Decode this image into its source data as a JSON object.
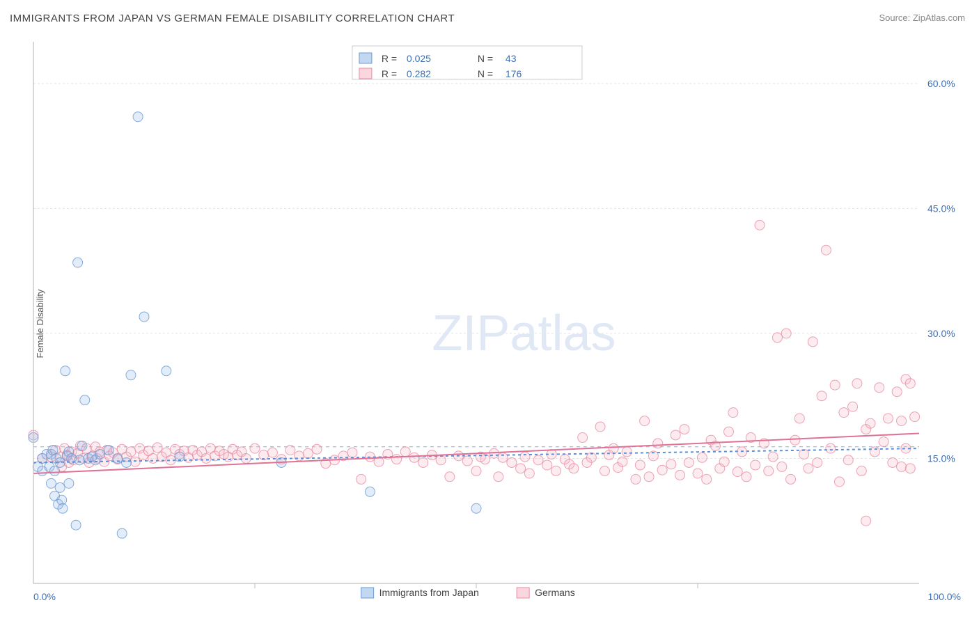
{
  "title": "IMMIGRANTS FROM JAPAN VS GERMAN FEMALE DISABILITY CORRELATION CHART",
  "source": "Source: ZipAtlas.com",
  "ylabel": "Female Disability",
  "watermark": {
    "text1": "ZIP",
    "text2": "atlas",
    "color": "#dfe8f4",
    "fontsize": 72
  },
  "chart": {
    "type": "scatter",
    "background": "#ffffff",
    "plot_border_color": "#bfbfbf",
    "grid_color": "#e4e4e4",
    "xlim": [
      0,
      100
    ],
    "ylim": [
      0,
      65
    ],
    "x_ticks": [
      {
        "v": 0,
        "label": "0.0%"
      },
      {
        "v": 100,
        "label": "100.0%"
      }
    ],
    "x_minor_ticks": [
      25,
      50,
      75
    ],
    "y_ticks": [
      {
        "v": 15,
        "label": "15.0%"
      },
      {
        "v": 30,
        "label": "30.0%"
      },
      {
        "v": 45,
        "label": "45.0%"
      },
      {
        "v": 60,
        "label": "60.0%"
      }
    ],
    "tick_color": "#3b6fb6",
    "tick_fontsize": 14,
    "marker_radius": 7,
    "marker_opacity": 0.28,
    "marker_stroke_opacity": 0.8,
    "series": [
      {
        "name": "Immigrants from Japan",
        "fill": "#9cbce8",
        "stroke": "#6a9ad4",
        "R": "0.025",
        "N": "43",
        "trend": {
          "y0": 14.5,
          "y1": 16.2,
          "color": "#5a8fd6",
          "width": 2,
          "dash": "4 4"
        },
        "pts": [
          [
            0,
            17.5
          ],
          [
            0.5,
            14
          ],
          [
            1,
            15
          ],
          [
            1,
            13.5
          ],
          [
            1.5,
            15.5
          ],
          [
            1.8,
            14
          ],
          [
            2,
            12
          ],
          [
            2,
            15.5
          ],
          [
            2.2,
            16
          ],
          [
            2.4,
            10.5
          ],
          [
            2.4,
            13.5
          ],
          [
            2.6,
            15
          ],
          [
            2.8,
            9.5
          ],
          [
            3,
            14.5
          ],
          [
            3,
            11.5
          ],
          [
            3.2,
            10
          ],
          [
            3.3,
            9
          ],
          [
            3.6,
            25.5
          ],
          [
            3.8,
            15.3
          ],
          [
            4,
            12
          ],
          [
            4,
            15.8
          ],
          [
            4.3,
            15
          ],
          [
            4.8,
            7
          ],
          [
            5,
            38.5
          ],
          [
            5.2,
            14.8
          ],
          [
            5.5,
            16.5
          ],
          [
            5.8,
            22
          ],
          [
            6.2,
            15
          ],
          [
            6.6,
            15.2
          ],
          [
            7,
            14.8
          ],
          [
            7.5,
            15.5
          ],
          [
            8.5,
            16
          ],
          [
            9.5,
            15
          ],
          [
            10,
            6
          ],
          [
            10.5,
            14.5
          ],
          [
            11,
            25
          ],
          [
            11.8,
            56
          ],
          [
            12.5,
            32
          ],
          [
            15,
            25.5
          ],
          [
            16.5,
            15.2
          ],
          [
            28,
            14.5
          ],
          [
            38,
            11
          ],
          [
            50,
            9
          ]
        ]
      },
      {
        "name": "Germans",
        "fill": "#f6bcca",
        "stroke": "#e98ba3",
        "R": "0.282",
        "N": "176",
        "trend": {
          "y0": 13.2,
          "y1": 18.0,
          "color": "#e07296",
          "width": 2,
          "dash": ""
        },
        "pts": [
          [
            0,
            17.8
          ],
          [
            1,
            15
          ],
          [
            2,
            15.2
          ],
          [
            2.5,
            16
          ],
          [
            3,
            15.2
          ],
          [
            3.2,
            14
          ],
          [
            3.5,
            16.2
          ],
          [
            3.8,
            15.4
          ],
          [
            4,
            14.5
          ],
          [
            4.3,
            15.8
          ],
          [
            4.5,
            14.8
          ],
          [
            5,
            15.6
          ],
          [
            5.3,
            16.5
          ],
          [
            5.6,
            15
          ],
          [
            6,
            16.2
          ],
          [
            6.3,
            14.5
          ],
          [
            6.7,
            15.3
          ],
          [
            7,
            16.4
          ],
          [
            7.2,
            15
          ],
          [
            7.5,
            15.8
          ],
          [
            8,
            14.6
          ],
          [
            8.3,
            16
          ],
          [
            8.6,
            15.3
          ],
          [
            9,
            15.7
          ],
          [
            9.5,
            14.9
          ],
          [
            10,
            16.1
          ],
          [
            10.5,
            15.2
          ],
          [
            11,
            15.8
          ],
          [
            11.5,
            14.6
          ],
          [
            12,
            16.2
          ],
          [
            12.4,
            15.4
          ],
          [
            13,
            15.9
          ],
          [
            13.5,
            15
          ],
          [
            14,
            16.3
          ],
          [
            14.5,
            15.2
          ],
          [
            15,
            15.7
          ],
          [
            15.5,
            14.8
          ],
          [
            16,
            16.1
          ],
          [
            16.5,
            15.5
          ],
          [
            17,
            15.9
          ],
          [
            17.5,
            15.1
          ],
          [
            18,
            16
          ],
          [
            18.5,
            15.4
          ],
          [
            19,
            15.8
          ],
          [
            19.5,
            15
          ],
          [
            20,
            16.2
          ],
          [
            20.5,
            15.3
          ],
          [
            21,
            15.9
          ],
          [
            21.5,
            15.5
          ],
          [
            22,
            15.2
          ],
          [
            22.5,
            16.1
          ],
          [
            23,
            15.4
          ],
          [
            23.5,
            15.8
          ],
          [
            24,
            15
          ],
          [
            25,
            16.2
          ],
          [
            26,
            15.4
          ],
          [
            27,
            15.7
          ],
          [
            28,
            14.9
          ],
          [
            29,
            16
          ],
          [
            30,
            15.3
          ],
          [
            31,
            15.6
          ],
          [
            32,
            16.1
          ],
          [
            33,
            14.4
          ],
          [
            34,
            14.8
          ],
          [
            35,
            15.3
          ],
          [
            36,
            15.7
          ],
          [
            37,
            12.5
          ],
          [
            38,
            15.2
          ],
          [
            39,
            14.6
          ],
          [
            40,
            15.5
          ],
          [
            41,
            14.9
          ],
          [
            42,
            15.8
          ],
          [
            43,
            15.1
          ],
          [
            44,
            14.5
          ],
          [
            45,
            15.4
          ],
          [
            46,
            14.8
          ],
          [
            47,
            12.8
          ],
          [
            48,
            15.3
          ],
          [
            49,
            14.7
          ],
          [
            50,
            13.5
          ],
          [
            50.5,
            15.2
          ],
          [
            51,
            14.9
          ],
          [
            52,
            15.6
          ],
          [
            52.5,
            12.8
          ],
          [
            53,
            15.1
          ],
          [
            54,
            14.5
          ],
          [
            55,
            13.8
          ],
          [
            55.5,
            15.2
          ],
          [
            56,
            13.2
          ],
          [
            57,
            14.8
          ],
          [
            58,
            14.2
          ],
          [
            58.5,
            15.5
          ],
          [
            59,
            13.5
          ],
          [
            60,
            14.9
          ],
          [
            60.5,
            14.3
          ],
          [
            61,
            13.8
          ],
          [
            62,
            17.5
          ],
          [
            62.5,
            14.5
          ],
          [
            63,
            15.1
          ],
          [
            64,
            18.8
          ],
          [
            64.5,
            13.5
          ],
          [
            65,
            15.4
          ],
          [
            65.5,
            16.2
          ],
          [
            66,
            13.9
          ],
          [
            66.5,
            14.6
          ],
          [
            67,
            15.8
          ],
          [
            68,
            12.5
          ],
          [
            68.5,
            14.2
          ],
          [
            69,
            19.5
          ],
          [
            69.5,
            12.8
          ],
          [
            70,
            15.3
          ],
          [
            70.5,
            16.8
          ],
          [
            71,
            13.6
          ],
          [
            72,
            14.3
          ],
          [
            72.5,
            17.8
          ],
          [
            73,
            13
          ],
          [
            73.5,
            18.5
          ],
          [
            74,
            14.5
          ],
          [
            75,
            13.2
          ],
          [
            75.5,
            15.1
          ],
          [
            76,
            12.5
          ],
          [
            76.5,
            17.2
          ],
          [
            77,
            16.5
          ],
          [
            77.5,
            13.8
          ],
          [
            78,
            14.6
          ],
          [
            78.5,
            18.2
          ],
          [
            79,
            20.5
          ],
          [
            79.5,
            13.4
          ],
          [
            80,
            15.8
          ],
          [
            80.5,
            12.8
          ],
          [
            81,
            17.5
          ],
          [
            81.5,
            14.2
          ],
          [
            82,
            43
          ],
          [
            82.5,
            16.8
          ],
          [
            83,
            13.5
          ],
          [
            83.5,
            15.2
          ],
          [
            84,
            29.5
          ],
          [
            84.5,
            14
          ],
          [
            85,
            30
          ],
          [
            85.5,
            12.5
          ],
          [
            86,
            17.2
          ],
          [
            86.5,
            19.8
          ],
          [
            87,
            15.5
          ],
          [
            87.5,
            13.8
          ],
          [
            88,
            29
          ],
          [
            88.5,
            14.5
          ],
          [
            89,
            22.5
          ],
          [
            89.5,
            40
          ],
          [
            90,
            16.2
          ],
          [
            90.5,
            23.8
          ],
          [
            91,
            12.2
          ],
          [
            91.5,
            20.5
          ],
          [
            92,
            14.8
          ],
          [
            92.5,
            21.2
          ],
          [
            93,
            24
          ],
          [
            93.5,
            13.5
          ],
          [
            94,
            18.5
          ],
          [
            94,
            7.5
          ],
          [
            94.5,
            19.2
          ],
          [
            95,
            15.8
          ],
          [
            95.5,
            23.5
          ],
          [
            96,
            17
          ],
          [
            96.5,
            19.8
          ],
          [
            97,
            14.5
          ],
          [
            97.5,
            23
          ],
          [
            98,
            19.5
          ],
          [
            98,
            14
          ],
          [
            98.5,
            24.5
          ],
          [
            98.5,
            16.2
          ],
          [
            99,
            13.8
          ],
          [
            99,
            24
          ],
          [
            99.5,
            20
          ]
        ]
      }
    ],
    "mean_line": {
      "y": 16.4,
      "color": "#8aaed8",
      "dash": "5 5",
      "width": 1
    }
  },
  "stats_box": {
    "r_label": "R =",
    "n_label": "N =",
    "label_color": "#444444",
    "value_color": "#3b6fb6"
  },
  "bottom_legend": [
    {
      "label": "Immigrants from Japan",
      "fill": "#9cbce8",
      "stroke": "#6a9ad4"
    },
    {
      "label": "Germans",
      "fill": "#f6bcca",
      "stroke": "#e98ba3"
    }
  ]
}
